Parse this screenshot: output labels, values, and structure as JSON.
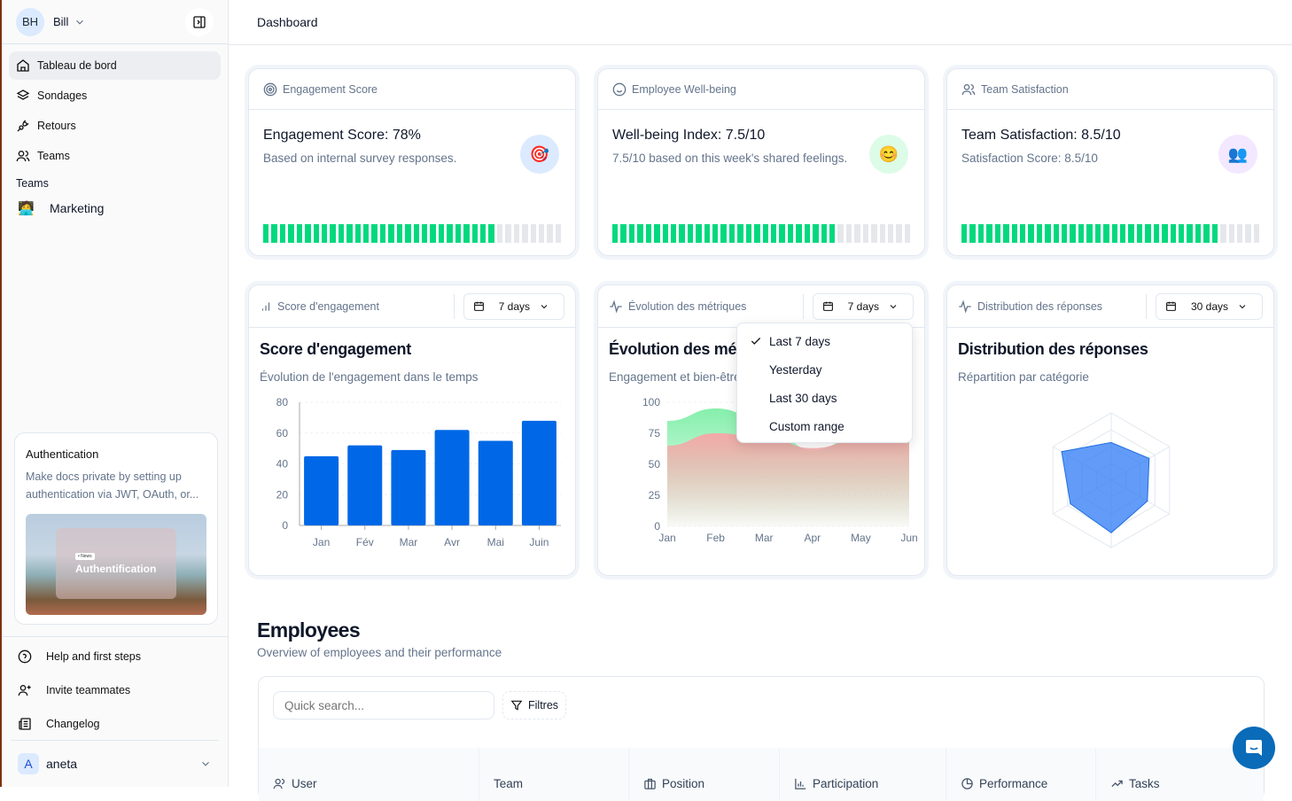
{
  "user": {
    "initials": "BH",
    "name": "Bill"
  },
  "header": {
    "title": "Dashboard"
  },
  "sidebar": {
    "items": [
      {
        "label": "Tableau de bord",
        "icon": "home-icon",
        "active": true
      },
      {
        "label": "Sondages",
        "icon": "layers-icon"
      },
      {
        "label": "Retours",
        "icon": "plug-icon"
      },
      {
        "label": "Teams",
        "icon": "users-icon"
      }
    ],
    "teams_heading": "Teams",
    "teams": [
      {
        "label": "Marketing",
        "emoji": "🧑‍💻"
      }
    ],
    "promo": {
      "title": "Authentication",
      "text": "Make docs private by setting up authentication via JWT, OAuth, or...",
      "image_tag": "• News",
      "image_title": "Authentification"
    },
    "bottom": [
      {
        "label": "Help and first steps",
        "icon": "help-circle-icon"
      },
      {
        "label": "Invite teammates",
        "icon": "user-plus-icon"
      },
      {
        "label": "Changelog",
        "icon": "newspaper-icon"
      }
    ],
    "account": {
      "initial": "A",
      "name": "aneta"
    }
  },
  "metrics": [
    {
      "header": "Engagement Score",
      "title": "Engagement Score: 78%",
      "subtitle": "Based on internal survey responses.",
      "emoji": "🎯",
      "badge_color": "#dbeafe",
      "progress": 0.78
    },
    {
      "header": "Employee Well-being",
      "title": "Well-being Index: 7.5/10",
      "subtitle": "7.5/10 based on this week's shared feelings.",
      "emoji": "😊",
      "badge_color": "#dcfce7",
      "progress": 0.75
    },
    {
      "header": "Team Satisfaction",
      "title": "Team Satisfaction: 8.5/10",
      "subtitle": "Satisfaction Score: 8.5/10",
      "emoji": "👥",
      "badge_color": "#f3e8ff",
      "progress": 0.85
    }
  ],
  "charts": [
    {
      "header": "Score d'engagement",
      "range": "7 days",
      "title": "Score d'engagement",
      "subtitle": "Évolution de l'engagement dans le temps"
    },
    {
      "header": "Évolution des métriques",
      "range": "7 days",
      "title": "Évolution des métriques",
      "subtitle": "Engagement et bien-être"
    },
    {
      "header": "Distribution des réponses",
      "range": "30 days",
      "title": "Distribution des réponses",
      "subtitle": "Répartition par catégorie"
    }
  ],
  "dropdown": {
    "options": [
      "Last 7 days",
      "Yesterday",
      "Last 30 days",
      "Custom range"
    ],
    "selected": "Last 7 days"
  },
  "chart_data": [
    {
      "type": "bar",
      "categories": [
        "Jan",
        "Fév",
        "Mar",
        "Avr",
        "Mai",
        "Juin"
      ],
      "values": [
        45,
        52,
        49,
        62,
        55,
        68
      ],
      "ylim": [
        0,
        80
      ],
      "yticks": [
        0,
        20,
        40,
        60,
        80
      ],
      "grid": true,
      "color": "#0068e6"
    },
    {
      "type": "area",
      "categories": [
        "Jan",
        "Feb",
        "Mar",
        "Apr",
        "May",
        "Jun"
      ],
      "ylim": [
        0,
        100
      ],
      "yticks": [
        0,
        25,
        50,
        75,
        100
      ],
      "series": [
        {
          "values": [
            85,
            95,
            86,
            61,
            74,
            72
          ],
          "color": "#86efac"
        },
        {
          "values": [
            65,
            75,
            72,
            63,
            70,
            68
          ],
          "color": "#f4a9a8"
        }
      ]
    },
    {
      "type": "radar",
      "values": [
        56,
        65,
        62,
        78,
        70,
        85
      ],
      "max": 100,
      "color": "#3b82f6"
    }
  ],
  "employees": {
    "title": "Employees",
    "subtitle": "Overview of employees and their performance",
    "search_placeholder": "Quick search...",
    "filter_label": "Filtres",
    "columns": [
      {
        "label": "User",
        "icon": "users-icon"
      },
      {
        "label": "Team",
        "icon": ""
      },
      {
        "label": "Position",
        "icon": "briefcase-icon"
      },
      {
        "label": "Participation",
        "icon": "bar-chart-icon"
      },
      {
        "label": "Performance",
        "icon": "pie-chart-icon"
      },
      {
        "label": "Tasks",
        "icon": "trending-up-icon"
      }
    ]
  }
}
